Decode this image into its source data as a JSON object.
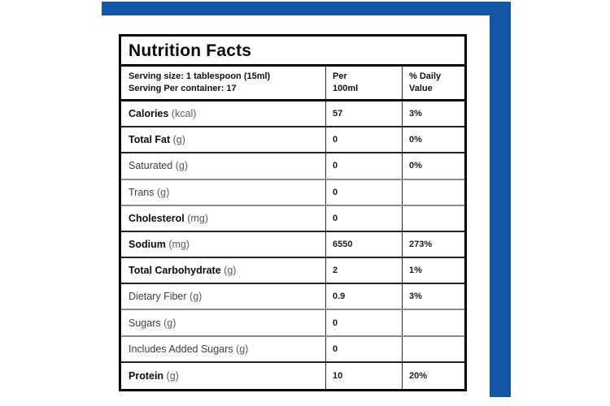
{
  "theme": {
    "accent_blue": "#1155A4",
    "border_black": "#000000",
    "divider_dark": "#222222",
    "divider_gray": "#8c8c8c"
  },
  "label": {
    "title": "Nutrition Facts",
    "serving": {
      "line1": "Serving size: 1 tablespoon (15ml)",
      "line2": "Serving Per container: 17"
    },
    "columns": {
      "per_line1": "Per",
      "per_line2": "100ml",
      "dv_line1": "% Daily",
      "dv_line2": "Value"
    },
    "rows": [
      {
        "name": "Calories",
        "unit": "(kcal)",
        "per100": "57",
        "dv": "3%",
        "bold": true,
        "divider": "dark"
      },
      {
        "name": "Total Fat",
        "unit": "(g)",
        "per100": "0",
        "dv": "0%",
        "bold": true,
        "divider": "dark"
      },
      {
        "name": "Saturated",
        "unit": "(g)",
        "per100": "0",
        "dv": "0%",
        "bold": false,
        "divider": "gray"
      },
      {
        "name": "Trans",
        "unit": "(g)",
        "per100": "0",
        "dv": "",
        "bold": false,
        "divider": "gray"
      },
      {
        "name": "Cholesterol",
        "unit": "(mg)",
        "per100": "0",
        "dv": "",
        "bold": true,
        "divider": "dark"
      },
      {
        "name": "Sodium",
        "unit": "(mg)",
        "per100": "6550",
        "dv": "273%",
        "bold": true,
        "divider": "dark"
      },
      {
        "name": "Total Carbohydrate",
        "unit": "(g)",
        "per100": "2",
        "dv": "1%",
        "bold": true,
        "divider": "dark"
      },
      {
        "name": "Dietary Fiber",
        "unit": "(g)",
        "per100": "0.9",
        "dv": "3%",
        "bold": false,
        "divider": "gray"
      },
      {
        "name": "Sugars",
        "unit": "(g)",
        "per100": "0",
        "dv": "",
        "bold": false,
        "divider": "gray"
      },
      {
        "name": "Includes Added Sugars",
        "unit": "(g)",
        "per100": "0",
        "dv": "",
        "bold": false,
        "divider": "dark"
      },
      {
        "name": "Protein",
        "unit": "(g)",
        "per100": "10",
        "dv": "20%",
        "bold": true,
        "divider": "none"
      }
    ]
  }
}
